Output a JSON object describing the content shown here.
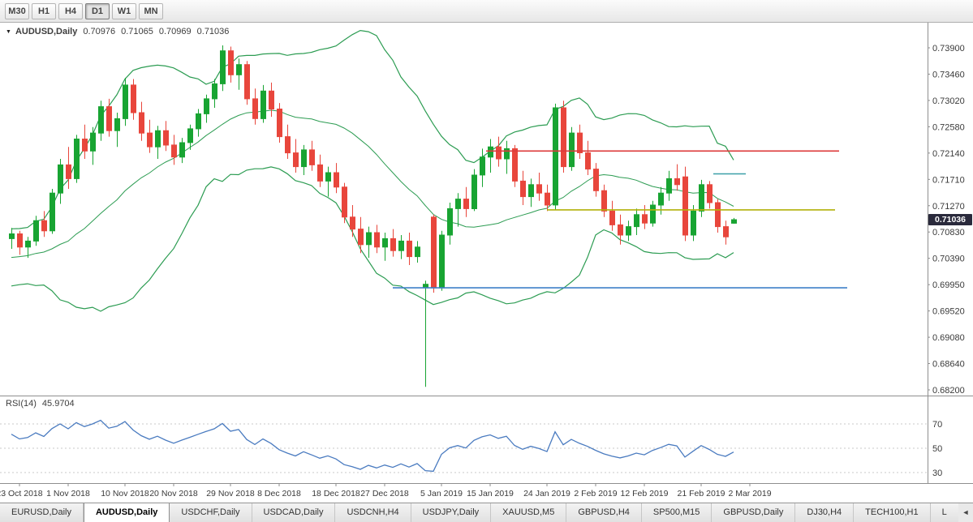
{
  "colors": {
    "bull": "#18A432",
    "bear": "#E8463C",
    "bollinger": "#2C9C52",
    "rsi_line": "#4A7BC0",
    "line_red": "#DD3A3A",
    "line_olive": "#B2B10A",
    "line_blue": "#3F80C8",
    "line_teal": "#3BA0A8",
    "badge_bg": "#2A2A3C"
  },
  "icons": {
    "symbol_dropdown": "▼",
    "tab_scroll": "◄"
  },
  "toolbar": {
    "timeframes": [
      {
        "label": "M30",
        "active": false
      },
      {
        "label": "H1",
        "active": false
      },
      {
        "label": "H4",
        "active": false
      },
      {
        "label": "D1",
        "active": true
      },
      {
        "label": "W1",
        "active": false
      },
      {
        "label": "MN",
        "active": false
      }
    ]
  },
  "header": {
    "symbol": "AUDUSD,Daily",
    "open": "0.70976",
    "high": "0.71065",
    "low": "0.70969",
    "close": "0.71036"
  },
  "rsi_header": {
    "label": "RSI(14)",
    "value": "45.9704"
  },
  "price_axis": {
    "current": "0.71036"
  },
  "chart_data": {
    "type": "candlestick",
    "title": "AUDUSD,Daily",
    "ylim": [
      0.682,
      0.739
    ],
    "y_tick_labels": [
      "0.73900",
      "0.73460",
      "0.73020",
      "0.72580",
      "0.72140",
      "0.71710",
      "0.71270",
      "0.70830",
      "0.70390",
      "0.69950",
      "0.69520",
      "0.69080",
      "0.68640",
      "0.68200"
    ],
    "x_ticks": [
      {
        "label": "23 Oct 2018",
        "i": 1
      },
      {
        "label": "1 Nov 2018",
        "i": 7
      },
      {
        "label": "10 Nov 2018",
        "i": 14
      },
      {
        "label": "20 Nov 2018",
        "i": 20
      },
      {
        "label": "29 Nov 2018",
        "i": 27
      },
      {
        "label": "8 Dec 2018",
        "i": 33
      },
      {
        "label": "18 Dec 2018",
        "i": 40
      },
      {
        "label": "27 Dec 2018",
        "i": 46
      },
      {
        "label": "5 Jan 2019",
        "i": 53
      },
      {
        "label": "15 Jan 2019",
        "i": 59
      },
      {
        "label": "24 Jan 2019",
        "i": 66
      },
      {
        "label": "2 Feb 2019",
        "i": 72
      },
      {
        "label": "12 Feb 2019",
        "i": 78
      },
      {
        "label": "21 Feb 2019",
        "i": 85
      },
      {
        "label": "2 Mar 2019",
        "i": 91
      }
    ],
    "warmup_closes": [
      0.7005,
      0.7032,
      0.6998,
      0.704,
      0.7018,
      0.7052,
      0.7028,
      0.706,
      0.7035,
      0.7068,
      0.7048,
      0.7066
    ],
    "ohlc": [
      [
        0.7072,
        0.709,
        0.7055,
        0.708
      ],
      [
        0.708,
        0.7085,
        0.7045,
        0.7058
      ],
      [
        0.7058,
        0.7075,
        0.704,
        0.7068
      ],
      [
        0.7068,
        0.711,
        0.706,
        0.7102
      ],
      [
        0.7102,
        0.7118,
        0.7075,
        0.7085
      ],
      [
        0.7085,
        0.7155,
        0.708,
        0.7148
      ],
      [
        0.7148,
        0.7205,
        0.713,
        0.7195
      ],
      [
        0.7195,
        0.7225,
        0.7155,
        0.7172
      ],
      [
        0.7172,
        0.7245,
        0.7165,
        0.7238
      ],
      [
        0.7238,
        0.7262,
        0.7205,
        0.7218
      ],
      [
        0.7218,
        0.7258,
        0.7195,
        0.7248
      ],
      [
        0.7248,
        0.7302,
        0.7235,
        0.7292
      ],
      [
        0.7292,
        0.7305,
        0.7242,
        0.7252
      ],
      [
        0.7252,
        0.7282,
        0.7225,
        0.7272
      ],
      [
        0.7272,
        0.734,
        0.726,
        0.7328
      ],
      [
        0.7328,
        0.7338,
        0.727,
        0.7282
      ],
      [
        0.7282,
        0.73,
        0.7235,
        0.7248
      ],
      [
        0.7248,
        0.727,
        0.7215,
        0.7225
      ],
      [
        0.7225,
        0.726,
        0.7205,
        0.7252
      ],
      [
        0.7252,
        0.7268,
        0.7218,
        0.7228
      ],
      [
        0.7228,
        0.7245,
        0.7195,
        0.7208
      ],
      [
        0.7208,
        0.724,
        0.7198,
        0.7232
      ],
      [
        0.7232,
        0.7262,
        0.722,
        0.7255
      ],
      [
        0.7255,
        0.7288,
        0.7242,
        0.728
      ],
      [
        0.728,
        0.7312,
        0.7265,
        0.7305
      ],
      [
        0.7305,
        0.7338,
        0.729,
        0.733
      ],
      [
        0.733,
        0.7394,
        0.7318,
        0.7385
      ],
      [
        0.7385,
        0.7392,
        0.7332,
        0.7345
      ],
      [
        0.7345,
        0.7372,
        0.732,
        0.7362
      ],
      [
        0.7362,
        0.7368,
        0.7295,
        0.7305
      ],
      [
        0.7305,
        0.7322,
        0.7262,
        0.7272
      ],
      [
        0.7272,
        0.7328,
        0.7265,
        0.7318
      ],
      [
        0.7318,
        0.7332,
        0.7275,
        0.7288
      ],
      [
        0.7288,
        0.7298,
        0.7232,
        0.7242
      ],
      [
        0.7242,
        0.7262,
        0.7205,
        0.7215
      ],
      [
        0.7215,
        0.7238,
        0.7182,
        0.7192
      ],
      [
        0.7192,
        0.7228,
        0.7178,
        0.722
      ],
      [
        0.722,
        0.7235,
        0.7185,
        0.7195
      ],
      [
        0.7195,
        0.7212,
        0.7158,
        0.7168
      ],
      [
        0.7168,
        0.7192,
        0.7142,
        0.7182
      ],
      [
        0.7182,
        0.7198,
        0.7148,
        0.7158
      ],
      [
        0.7158,
        0.7165,
        0.7098,
        0.7108
      ],
      [
        0.7108,
        0.7128,
        0.7075,
        0.7088
      ],
      [
        0.7088,
        0.7108,
        0.7048,
        0.7062
      ],
      [
        0.7062,
        0.7092,
        0.704,
        0.7082
      ],
      [
        0.7082,
        0.7095,
        0.7048,
        0.7058
      ],
      [
        0.7058,
        0.7082,
        0.7035,
        0.7072
      ],
      [
        0.7072,
        0.7088,
        0.7042,
        0.7052
      ],
      [
        0.7052,
        0.7078,
        0.7038,
        0.7068
      ],
      [
        0.7068,
        0.7082,
        0.7028,
        0.7042
      ],
      [
        0.7042,
        0.7068,
        0.7032,
        0.7058
      ],
      [
        0.699,
        0.7002,
        0.6825,
        0.6996
      ],
      [
        0.7108,
        0.7112,
        0.6982,
        0.699
      ],
      [
        0.699,
        0.7085,
        0.6985,
        0.7078
      ],
      [
        0.7078,
        0.7132,
        0.7062,
        0.7122
      ],
      [
        0.7122,
        0.7148,
        0.7092,
        0.7138
      ],
      [
        0.7138,
        0.7158,
        0.7108,
        0.7122
      ],
      [
        0.7122,
        0.7188,
        0.7118,
        0.7178
      ],
      [
        0.7178,
        0.7222,
        0.7158,
        0.7208
      ],
      [
        0.7208,
        0.7238,
        0.7182,
        0.7225
      ],
      [
        0.7225,
        0.7242,
        0.7192,
        0.7205
      ],
      [
        0.7205,
        0.7235,
        0.718,
        0.7222
      ],
      [
        0.7222,
        0.7228,
        0.7158,
        0.7168
      ],
      [
        0.7168,
        0.7185,
        0.7128,
        0.7142
      ],
      [
        0.7142,
        0.7172,
        0.7125,
        0.7162
      ],
      [
        0.7162,
        0.7182,
        0.7135,
        0.7148
      ],
      [
        0.7148,
        0.7162,
        0.7118,
        0.7128
      ],
      [
        0.7128,
        0.7297,
        0.712,
        0.729
      ],
      [
        0.729,
        0.7302,
        0.7182,
        0.7192
      ],
      [
        0.7192,
        0.7258,
        0.7185,
        0.7248
      ],
      [
        0.7248,
        0.7262,
        0.7205,
        0.7215
      ],
      [
        0.7215,
        0.7235,
        0.7178,
        0.7188
      ],
      [
        0.7188,
        0.7198,
        0.7142,
        0.7152
      ],
      [
        0.7152,
        0.7162,
        0.7108,
        0.7118
      ],
      [
        0.7118,
        0.7135,
        0.7085,
        0.7095
      ],
      [
        0.7095,
        0.7112,
        0.7062,
        0.7078
      ],
      [
        0.7078,
        0.7102,
        0.7068,
        0.7092
      ],
      [
        0.7092,
        0.7122,
        0.7078,
        0.7112
      ],
      [
        0.7112,
        0.7128,
        0.7088,
        0.7098
      ],
      [
        0.7098,
        0.7135,
        0.7092,
        0.7128
      ],
      [
        0.7128,
        0.7158,
        0.7112,
        0.7148
      ],
      [
        0.7148,
        0.7185,
        0.7135,
        0.7172
      ],
      [
        0.7172,
        0.7196,
        0.7152,
        0.7162
      ],
      [
        0.7175,
        0.7192,
        0.7068,
        0.7078
      ],
      [
        0.7078,
        0.7128,
        0.7068,
        0.7118
      ],
      [
        0.7118,
        0.717,
        0.7108,
        0.7162
      ],
      [
        0.7162,
        0.7168,
        0.7122,
        0.7132
      ],
      [
        0.7132,
        0.7138,
        0.7082,
        0.7092
      ],
      [
        0.7092,
        0.7102,
        0.7062,
        0.7075
      ],
      [
        0.70976,
        0.71065,
        0.70969,
        0.71036
      ]
    ],
    "hlines": [
      {
        "name": "resistance-line-red",
        "price": 0.7218,
        "i1": 58.5,
        "i2": 102,
        "color_key": "line_red"
      },
      {
        "name": "pivot-line-olive",
        "price": 0.712,
        "i1": 66,
        "i2": 101.5,
        "color_key": "line_olive"
      },
      {
        "name": "support-line-blue",
        "price": 0.699,
        "i1": 47,
        "i2": 103,
        "color_key": "line_blue"
      },
      {
        "name": "short-line-teal",
        "price": 0.718,
        "i1": 86.5,
        "i2": 90.5,
        "color_key": "line_teal"
      }
    ],
    "indicators": {
      "bollinger": {
        "period": 20,
        "deviation": 2
      },
      "rsi": {
        "period": 14,
        "value": 45.9704,
        "levels": [
          70,
          50,
          30
        ]
      }
    }
  },
  "tabs": {
    "items": [
      {
        "label": "EURUSD,Daily",
        "active": false
      },
      {
        "label": "AUDUSD,Daily",
        "active": true
      },
      {
        "label": "USDCHF,Daily",
        "active": false
      },
      {
        "label": "USDCAD,Daily",
        "active": false
      },
      {
        "label": "USDCNH,H4",
        "active": false
      },
      {
        "label": "USDJPY,Daily",
        "active": false
      },
      {
        "label": "XAUUSD,M5",
        "active": false
      },
      {
        "label": "GBPUSD,H4",
        "active": false
      },
      {
        "label": "SP500,M15",
        "active": false
      },
      {
        "label": "GBPUSD,Daily",
        "active": false
      },
      {
        "label": "DJ30,H4",
        "active": false
      },
      {
        "label": "TECH100,H1",
        "active": false
      },
      {
        "label": "L",
        "active": false
      }
    ]
  }
}
